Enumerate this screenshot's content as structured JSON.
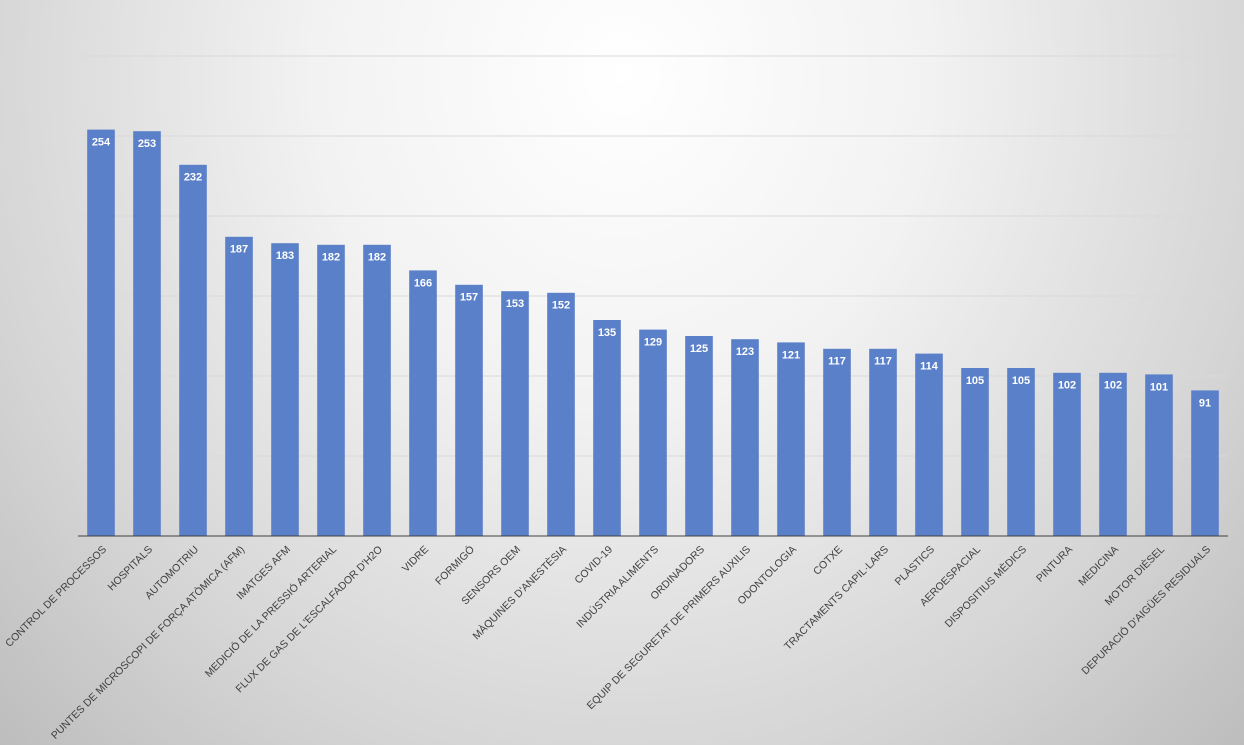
{
  "chart_data": {
    "type": "bar",
    "categories": [
      "CONTROL DE PROCESSOS",
      "HOSPITALS",
      "AUTOMOTRIU",
      "PUNTES DE MICROSCOPI DE FORÇA ATÒMICA (AFM)",
      "IMATGES AFM",
      "MEDICIÓ DE LA PRESSIÓ ARTERIAL",
      "FLUX DE GAS DE L'ESCALFADOR D'H2O",
      "VIDRE",
      "FORMIGÓ",
      "SENSORS OEM",
      "MÀQUINES D'ANESTÈSIA",
      "COVID-19",
      "INDÚSTRIA ALIMENTS",
      "ORDINADORS",
      "EQUIP DE SEGURETAT DE PRIMERS AUXILIS",
      "ODONTOLOGIA",
      "COTXE",
      "TRACTAMENTS CAPIL·LARS",
      "PLÀSTICS",
      "AEROESPACIAL",
      "DISPOSITIUS MÈDICS",
      "PINTURA",
      "MEDICINA",
      "MOTOR DIÈSEL",
      "DEPURACIÓ D'AIGÜES RESIDUALS"
    ],
    "values": [
      254,
      253,
      232,
      187,
      183,
      182,
      182,
      166,
      157,
      153,
      152,
      135,
      129,
      125,
      123,
      121,
      117,
      117,
      114,
      105,
      105,
      102,
      102,
      101,
      91
    ],
    "color": "#5a80c9",
    "ylim": [
      0,
      300
    ],
    "yticks": [
      0,
      50,
      100,
      150,
      200,
      250,
      300
    ],
    "grid": true
  }
}
